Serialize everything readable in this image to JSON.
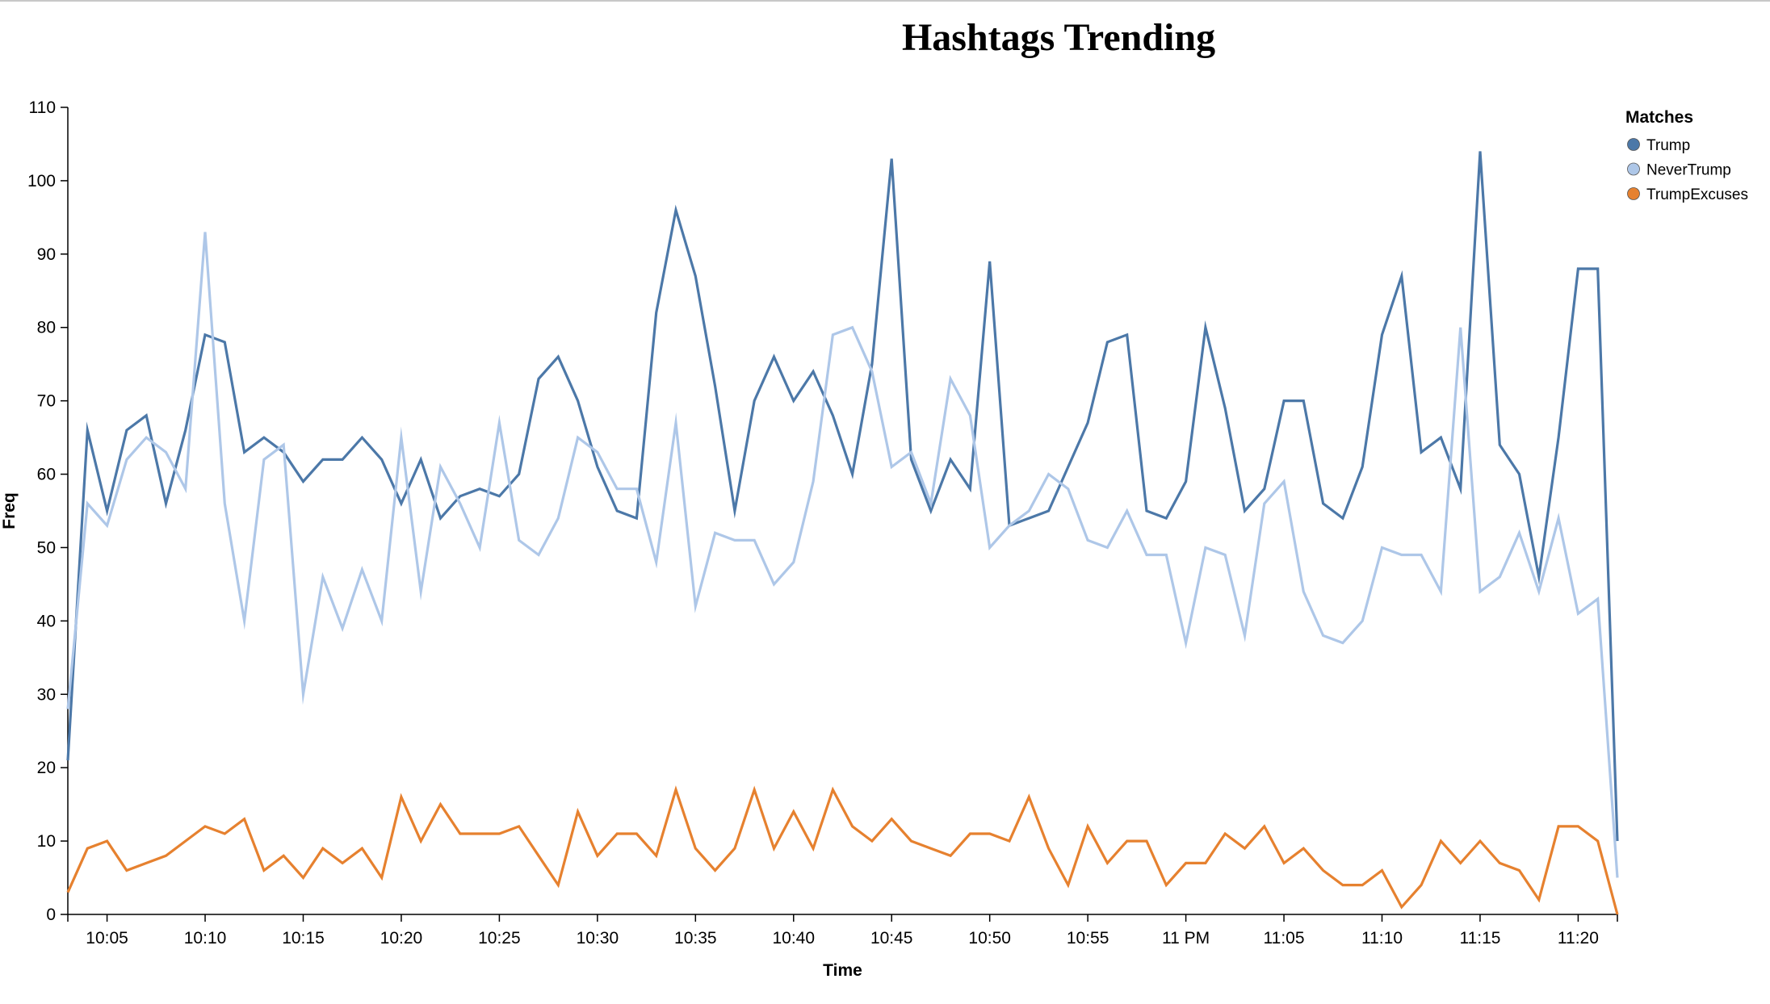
{
  "chart_data": {
    "type": "line",
    "title": "Hashtags Trending",
    "xlabel": "Time",
    "ylabel": "Freq",
    "ylim": [
      0,
      110
    ],
    "yticks": [
      0,
      10,
      20,
      30,
      40,
      50,
      60,
      70,
      80,
      90,
      100,
      110
    ],
    "x_start": "10:03",
    "x_end": "11:22",
    "x_step_minutes": 1,
    "x": [
      "10:03",
      "10:04",
      "10:05",
      "10:06",
      "10:07",
      "10:08",
      "10:09",
      "10:10",
      "10:11",
      "10:12",
      "10:13",
      "10:14",
      "10:15",
      "10:16",
      "10:17",
      "10:18",
      "10:19",
      "10:20",
      "10:21",
      "10:22",
      "10:23",
      "10:24",
      "10:25",
      "10:26",
      "10:27",
      "10:28",
      "10:29",
      "10:30",
      "10:31",
      "10:32",
      "10:33",
      "10:34",
      "10:35",
      "10:36",
      "10:37",
      "10:38",
      "10:39",
      "10:40",
      "10:41",
      "10:42",
      "10:43",
      "10:44",
      "10:45",
      "10:46",
      "10:47",
      "10:48",
      "10:49",
      "10:50",
      "10:51",
      "10:52",
      "10:53",
      "10:54",
      "10:55",
      "10:56",
      "10:57",
      "10:58",
      "10:59",
      "11:00",
      "11:01",
      "11:02",
      "11:03",
      "11:04",
      "11:05",
      "11:06",
      "11:07",
      "11:08",
      "11:09",
      "11:10",
      "11:11",
      "11:12",
      "11:13",
      "11:14",
      "11:15",
      "11:16",
      "11:17",
      "11:18",
      "11:19",
      "11:20",
      "11:21",
      "11:22"
    ],
    "xticks": [
      {
        "t": "10:05",
        "label": "10:05"
      },
      {
        "t": "10:10",
        "label": "10:10"
      },
      {
        "t": "10:15",
        "label": "10:15"
      },
      {
        "t": "10:20",
        "label": "10:20"
      },
      {
        "t": "10:25",
        "label": "10:25"
      },
      {
        "t": "10:30",
        "label": "10:30"
      },
      {
        "t": "10:35",
        "label": "10:35"
      },
      {
        "t": "10:40",
        "label": "10:40"
      },
      {
        "t": "10:45",
        "label": "10:45"
      },
      {
        "t": "10:50",
        "label": "10:50"
      },
      {
        "t": "10:55",
        "label": "10:55"
      },
      {
        "t": "11:00",
        "label": "11 PM"
      },
      {
        "t": "11:05",
        "label": "11:05"
      },
      {
        "t": "11:10",
        "label": "11:10"
      },
      {
        "t": "11:15",
        "label": "11:15"
      },
      {
        "t": "11:20",
        "label": "11:20"
      }
    ],
    "legend_title": "Matches",
    "legend_position": "top-right",
    "grid": false,
    "series": [
      {
        "name": "Trump",
        "color": "#4c78a8",
        "values": [
          21,
          66,
          55,
          66,
          68,
          56,
          66,
          79,
          78,
          63,
          65,
          63,
          59,
          62,
          62,
          65,
          62,
          56,
          62,
          54,
          57,
          58,
          57,
          60,
          73,
          76,
          70,
          61,
          55,
          54,
          82,
          96,
          87,
          72,
          55,
          70,
          76,
          70,
          74,
          68,
          60,
          75,
          103,
          62,
          55,
          62,
          58,
          89,
          53,
          54,
          55,
          61,
          67,
          78,
          79,
          55,
          54,
          59,
          80,
          69,
          55,
          58,
          70,
          70,
          56,
          54,
          61,
          79,
          87,
          63,
          65,
          58,
          104,
          64,
          60,
          46,
          65,
          88,
          88,
          10
        ]
      },
      {
        "name": "NeverTrump",
        "color": "#aec7e8",
        "values": [
          28,
          56,
          53,
          62,
          65,
          63,
          58,
          93,
          56,
          40,
          62,
          64,
          30,
          46,
          39,
          47,
          40,
          65,
          44,
          61,
          56,
          50,
          67,
          51,
          49,
          54,
          65,
          63,
          58,
          58,
          48,
          67,
          42,
          52,
          51,
          51,
          45,
          48,
          59,
          79,
          80,
          74,
          61,
          63,
          56,
          73,
          68,
          50,
          53,
          55,
          60,
          58,
          51,
          50,
          55,
          49,
          49,
          37,
          50,
          49,
          38,
          56,
          59,
          44,
          38,
          37,
          40,
          50,
          49,
          49,
          44,
          80,
          44,
          46,
          52,
          44,
          54,
          41,
          43,
          5
        ]
      },
      {
        "name": "TrumpExcuses",
        "color": "#e6812f",
        "values": [
          3,
          9,
          10,
          6,
          7,
          8,
          10,
          12,
          11,
          13,
          6,
          8,
          5,
          9,
          7,
          9,
          5,
          16,
          10,
          15,
          11,
          11,
          11,
          12,
          8,
          4,
          14,
          8,
          11,
          11,
          8,
          17,
          9,
          6,
          9,
          17,
          9,
          14,
          9,
          17,
          12,
          10,
          13,
          10,
          9,
          8,
          11,
          11,
          10,
          16,
          9,
          4,
          12,
          7,
          10,
          10,
          4,
          7,
          7,
          11,
          9,
          12,
          7,
          9,
          6,
          4,
          4,
          6,
          1,
          4,
          10,
          7,
          10,
          7,
          6,
          2,
          12,
          12,
          10,
          0
        ]
      }
    ]
  }
}
